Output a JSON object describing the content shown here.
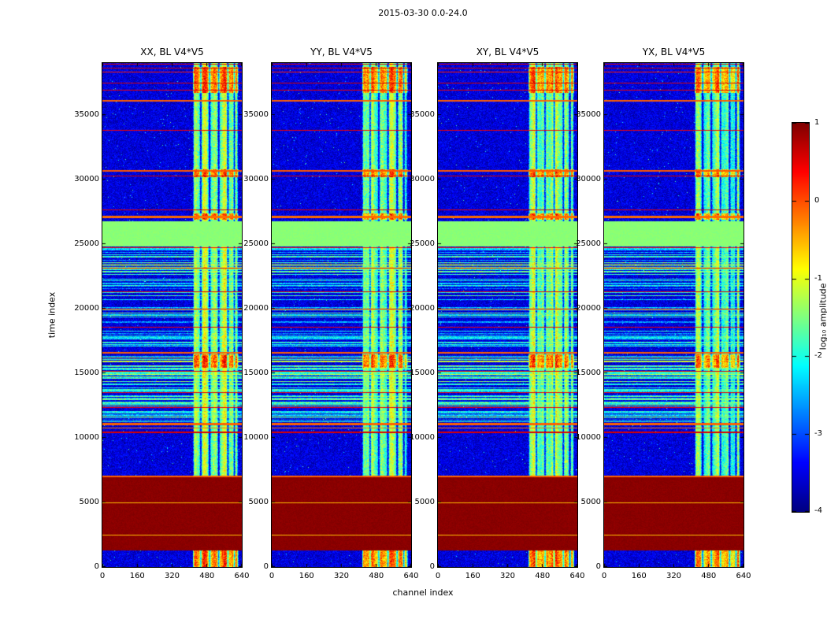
{
  "chart_data": {
    "type": "heatmap",
    "title": "2015-03-30 0.0-24.0",
    "xlabel": "channel index",
    "ylabel": "time index",
    "x_range": [
      0,
      640
    ],
    "y_range": [
      0,
      39000
    ],
    "x_ticks": [
      0,
      160,
      320,
      480,
      640
    ],
    "y_ticks": [
      0,
      5000,
      10000,
      15000,
      20000,
      25000,
      30000,
      35000
    ],
    "panels": [
      {
        "title": "XX, BL V4*V5"
      },
      {
        "title": "YY, BL V4*V5"
      },
      {
        "title": "XY, BL V4*V5"
      },
      {
        "title": "YX, BL V4*V5"
      }
    ],
    "colorbar": {
      "label": "log₁₀ amplitude",
      "ticks": [
        1,
        0,
        -1,
        -2,
        -3,
        -4
      ],
      "range": [
        -4,
        1
      ],
      "colormap": "jet"
    },
    "features": {
      "background": {
        "mean": -3.55,
        "noise": 0.35,
        "speckle_chance": 0.004
      },
      "active_band": {
        "channels": [
          416,
          624
        ],
        "mean": -1.55,
        "noise": 0.5,
        "strong_mean": -0.3,
        "gap_channels": [
          452,
          492,
          534,
          576,
          606
        ],
        "strong_times": [
          [
            0,
            1250
          ],
          [
            15400,
            16480
          ],
          [
            26850,
            27350
          ],
          [
            30150,
            30750
          ],
          [
            36700,
            38700
          ]
        ],
        "panel_mean_offsets": [
          0.05,
          0,
          0.1,
          -0.15
        ]
      },
      "solid_bands": [
        {
          "t": [
            1250,
            6940
          ],
          "value": 0.95,
          "label": "saturated dark-red block"
        },
        {
          "t": [
            24820,
            26760
          ],
          "value": -1.45,
          "label": "flat green block"
        }
      ],
      "h_stripes": [
        {
          "t": 38900,
          "h": 80,
          "v": 0.5
        },
        {
          "t": 38600,
          "h": 110,
          "v": 0.6
        },
        {
          "t": 38280,
          "h": 70,
          "v": 0.25
        },
        {
          "t": 37430,
          "h": 80,
          "v": 0.55
        },
        {
          "t": 36900,
          "h": 70,
          "v": 0.45
        },
        {
          "t": 36060,
          "h": 150,
          "v": -0.1
        },
        {
          "t": 33810,
          "h": 70,
          "v": 0.4
        },
        {
          "t": 30640,
          "h": 140,
          "v": -0.05
        },
        {
          "t": 30260,
          "h": 70,
          "v": 0.55
        },
        {
          "t": 27620,
          "h": 70,
          "v": 0.5
        },
        {
          "t": 27110,
          "h": 170,
          "v": -0.15
        },
        {
          "t": 24730,
          "h": 70,
          "v": 0.35
        },
        {
          "t": 23150,
          "h": 70,
          "v": 0.45
        },
        {
          "t": 21320,
          "h": 70,
          "v": 0.5
        },
        {
          "t": 19960,
          "h": 70,
          "v": 0.4
        },
        {
          "t": 18560,
          "h": 70,
          "v": 0.45
        },
        {
          "t": 16560,
          "h": 150,
          "v": -0.1
        },
        {
          "t": 15140,
          "h": 70,
          "v": 0.5
        },
        {
          "t": 13480,
          "h": 70,
          "v": 0.45
        },
        {
          "t": 12340,
          "h": 70,
          "v": 0.4
        },
        {
          "t": 11060,
          "h": 130,
          "v": -0.1
        },
        {
          "t": 10760,
          "h": 110,
          "v": -0.2
        },
        {
          "t": 10420,
          "h": 70,
          "v": 0.55
        },
        {
          "t": 7010,
          "h": 140,
          "v": -0.1
        },
        {
          "t": 4950,
          "h": 80,
          "v": -0.55
        },
        {
          "t": 2450,
          "h": 80,
          "v": -0.55
        }
      ],
      "stripe_regions": [
        {
          "t": [
            21950,
            24680
          ],
          "density": 0.5,
          "value_range": [
            -2.7,
            -1.3
          ]
        },
        {
          "t": [
            17050,
            21950
          ],
          "density": 0.32,
          "value_range": [
            -2.9,
            -1.6
          ]
        },
        {
          "t": [
            14850,
            16480
          ],
          "density": 0.62,
          "value_range": [
            -2.3,
            -1.1
          ]
        },
        {
          "t": [
            11150,
            14850
          ],
          "density": 0.45,
          "value_range": [
            -2.6,
            -1.4
          ]
        }
      ]
    }
  }
}
